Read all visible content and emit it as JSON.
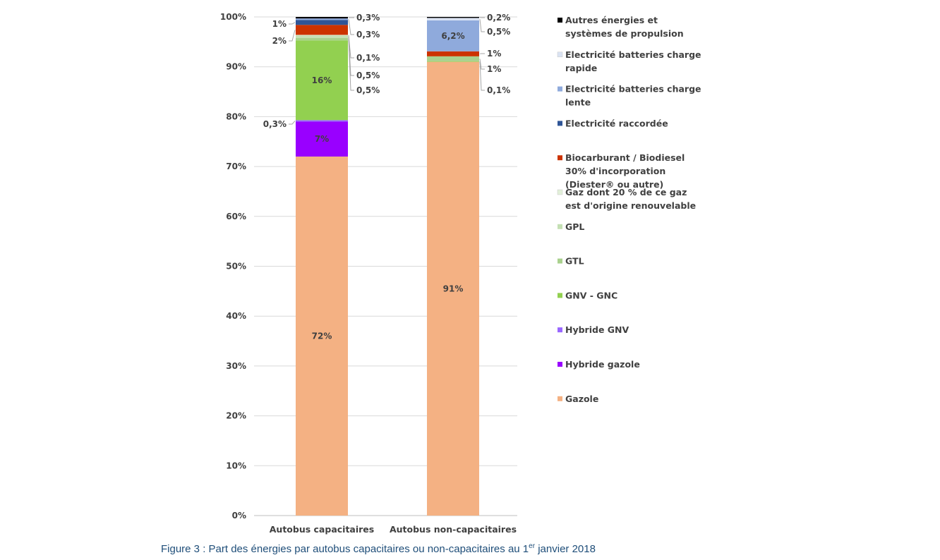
{
  "caption": {
    "prefix": "Figure 3 : Part des énergies par autobus capacitaires ou non-capacitaires au 1",
    "sup": "er",
    "suffix": " janvier 2018"
  },
  "chart_data": {
    "type": "bar",
    "stacked": true,
    "title": "",
    "xlabel": "",
    "ylabel": "",
    "ylim": [
      0,
      100
    ],
    "y_ticks": [
      "0%",
      "10%",
      "20%",
      "30%",
      "40%",
      "50%",
      "60%",
      "70%",
      "80%",
      "90%",
      "100%"
    ],
    "grid": true,
    "legend_position": "right",
    "categories": [
      "Autobus capacitaires",
      "Autobus non-capacitaires"
    ],
    "series": [
      {
        "name": "Gazole",
        "color": "#f4b183",
        "values": [
          72,
          91
        ],
        "labels": [
          "72%",
          "91%"
        ]
      },
      {
        "name": "Hybride gazole",
        "color": "#9900ff",
        "values": [
          7,
          0
        ],
        "labels": [
          "7%",
          ""
        ]
      },
      {
        "name": "Hybride GNV",
        "color": "#9966ff",
        "values": [
          0.3,
          0
        ],
        "labels": [
          "0,3%",
          ""
        ]
      },
      {
        "name": "GNV - GNC",
        "color": "#92d050",
        "values": [
          16,
          0.1
        ],
        "labels": [
          "16%",
          "0,1%"
        ]
      },
      {
        "name": "GTL",
        "color": "#a9d18e",
        "values": [
          0.5,
          1
        ],
        "labels": [
          "0,5%",
          "1%"
        ]
      },
      {
        "name": "GPL",
        "color": "#c5e0b4",
        "values": [
          0.5,
          0
        ],
        "labels": [
          "0,5%",
          ""
        ]
      },
      {
        "name": "Gaz dont 20 % de ce gaz est d'origine renouvelable",
        "color": "#e2f0d9",
        "values": [
          0.1,
          0
        ],
        "labels": [
          "0,1%",
          ""
        ]
      },
      {
        "name": "Biocarburant / Biodiesel 30% d'incorporation (Diester® ou autre)",
        "color": "#cc3300",
        "values": [
          2,
          1
        ],
        "labels": [
          "2%",
          "1%"
        ]
      },
      {
        "name": "Electricité raccordée",
        "color": "#2f5597",
        "values": [
          1,
          0
        ],
        "labels": [
          "1%",
          ""
        ]
      },
      {
        "name": "Electricité batteries charge lente",
        "color": "#8faadc",
        "values": [
          0.3,
          6.2
        ],
        "labels": [
          "0,3%",
          "6,2%"
        ]
      },
      {
        "name": "Electricité batteries charge rapide",
        "color": "#dae3f3",
        "values": [
          0,
          0.5
        ],
        "labels": [
          "",
          "0,5%"
        ]
      },
      {
        "name": "Autres énergies et systèmes de propulsion",
        "color": "#000000",
        "values": [
          0.3,
          0.2
        ],
        "labels": [
          "0,3%",
          "0,2%"
        ]
      }
    ],
    "legend": [
      {
        "lines": [
          "Autres énergies et",
          "systèmes de propulsion"
        ],
        "color": "#000000"
      },
      {
        "lines": [
          "Electricité batteries charge",
          "rapide"
        ],
        "color": "#dae3f3"
      },
      {
        "lines": [
          "Electricité batteries charge",
          "lente"
        ],
        "color": "#8faadc"
      },
      {
        "lines": [
          "Electricité raccordée"
        ],
        "color": "#2f5597"
      },
      {
        "lines": [
          "Biocarburant / Biodiesel",
          "30% d'incorporation",
          "(Diester® ou autre)"
        ],
        "color": "#cc3300"
      },
      {
        "lines": [
          "Gaz dont 20 % de ce gaz",
          "est d'origine renouvelable"
        ],
        "color": "#e2f0d9"
      },
      {
        "lines": [
          "GPL"
        ],
        "color": "#c5e0b4"
      },
      {
        "lines": [
          "GTL"
        ],
        "color": "#a9d18e"
      },
      {
        "lines": [
          "GNV - GNC"
        ],
        "color": "#92d050"
      },
      {
        "lines": [
          "Hybride GNV"
        ],
        "color": "#9966ff"
      },
      {
        "lines": [
          "Hybride gazole"
        ],
        "color": "#9900ff"
      },
      {
        "lines": [
          "Gazole"
        ],
        "color": "#f4b183"
      }
    ]
  }
}
